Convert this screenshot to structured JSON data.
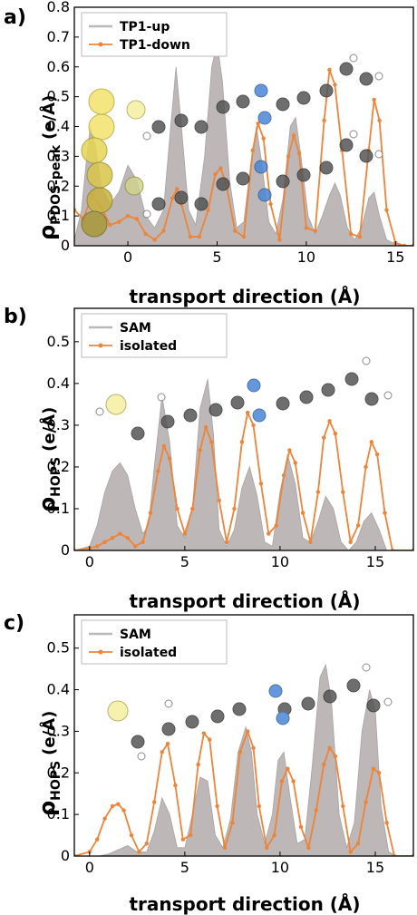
{
  "chart_data": [
    {
      "panel": "a)",
      "type": "area",
      "xlabel": "transport direction (Å)",
      "ylabel_main": "ρ",
      "ylabel_sub": "PDOS-peak",
      "ylabel_unit": "(e/Å)",
      "xlim": [
        -3,
        16
      ],
      "ylim": [
        0,
        0.8
      ],
      "xticks": [
        0,
        5,
        10,
        15
      ],
      "yticks": [
        0,
        0.1,
        0.2,
        0.3,
        0.4,
        0.5,
        0.6,
        0.7,
        0.8
      ],
      "legend_position": "top-left",
      "series": [
        {
          "name": "TP1-up",
          "style": "filled",
          "color": "#bdb7b7",
          "x": [
            -3,
            -2.6,
            -2.3,
            -2.1,
            -1.8,
            -1.5,
            -1.0,
            -0.5,
            0.0,
            0.5,
            1.0,
            1.5,
            2.0,
            2.4,
            2.7,
            3.0,
            3.4,
            3.8,
            4.3,
            4.7,
            5.0,
            5.3,
            5.7,
            6.1,
            6.5,
            6.9,
            7.2,
            7.5,
            7.9,
            8.3,
            8.7,
            9.1,
            9.4,
            9.7,
            10.1,
            10.5,
            10.9,
            11.3,
            11.6,
            11.9,
            12.3,
            12.7,
            13.1,
            13.5,
            13.8,
            14.1,
            14.5,
            15.0,
            15.5,
            16
          ],
          "y": [
            0.02,
            0.12,
            0.3,
            0.4,
            0.33,
            0.2,
            0.14,
            0.18,
            0.27,
            0.22,
            0.1,
            0.06,
            0.12,
            0.4,
            0.6,
            0.4,
            0.12,
            0.07,
            0.3,
            0.6,
            0.68,
            0.55,
            0.22,
            0.06,
            0.08,
            0.28,
            0.4,
            0.28,
            0.08,
            0.04,
            0.16,
            0.4,
            0.43,
            0.3,
            0.1,
            0.04,
            0.1,
            0.17,
            0.21,
            0.17,
            0.06,
            0.02,
            0.06,
            0.16,
            0.18,
            0.1,
            0.02,
            0.005,
            0.0,
            0.0
          ]
        },
        {
          "name": "TP1-down",
          "style": "line-markers",
          "color": "#ee8438",
          "x": [
            -3,
            -2.5,
            -2.0,
            -1.5,
            -1.0,
            -0.5,
            0.0,
            0.5,
            1.0,
            1.5,
            2.0,
            2.5,
            2.75,
            3.0,
            3.5,
            4.0,
            4.5,
            4.9,
            5.2,
            5.5,
            6.0,
            6.5,
            7.0,
            7.3,
            7.6,
            8.0,
            8.5,
            9.0,
            9.3,
            9.6,
            10.0,
            10.5,
            11.0,
            11.3,
            11.6,
            12.0,
            12.5,
            13.0,
            13.5,
            13.8,
            14.1,
            14.5,
            15.0,
            15.5,
            16
          ],
          "y": [
            0.12,
            0.09,
            0.17,
            0.13,
            0.07,
            0.08,
            0.1,
            0.09,
            0.04,
            0.02,
            0.05,
            0.16,
            0.19,
            0.14,
            0.03,
            0.03,
            0.12,
            0.24,
            0.26,
            0.21,
            0.05,
            0.03,
            0.32,
            0.41,
            0.36,
            0.14,
            0.02,
            0.3,
            0.37,
            0.31,
            0.06,
            0.05,
            0.42,
            0.59,
            0.54,
            0.32,
            0.04,
            0.03,
            0.32,
            0.49,
            0.42,
            0.12,
            0.01,
            0.0,
            0.0
          ]
        }
      ]
    },
    {
      "panel": "b)",
      "type": "area",
      "xlabel": "transport direction (Å)",
      "ylabel_main": "ρ",
      "ylabel_sub": "HOPS",
      "ylabel_unit": "(e/Å)",
      "xlim": [
        -0.8,
        17
      ],
      "ylim": [
        0,
        0.58
      ],
      "xticks": [
        0,
        5,
        10,
        15
      ],
      "yticks": [
        0,
        0.1,
        0.2,
        0.3,
        0.4,
        0.5
      ],
      "legend_position": "top-left",
      "series": [
        {
          "name": "SAM",
          "style": "filled",
          "color": "#bdb7b7",
          "x": [
            -0.8,
            0.0,
            0.4,
            0.8,
            1.2,
            1.6,
            2.0,
            2.4,
            2.8,
            3.1,
            3.4,
            3.8,
            4.2,
            4.6,
            5.0,
            5.4,
            5.8,
            6.2,
            6.5,
            6.8,
            7.2,
            7.6,
            8.0,
            8.4,
            8.8,
            9.2,
            9.6,
            10.0,
            10.4,
            10.8,
            11.2,
            11.6,
            12.0,
            12.4,
            12.8,
            13.2,
            13.6,
            14.0,
            14.4,
            14.8,
            15.2,
            15.6,
            16.0,
            17
          ],
          "y": [
            0.0,
            0.01,
            0.06,
            0.14,
            0.19,
            0.21,
            0.18,
            0.1,
            0.04,
            0.06,
            0.2,
            0.37,
            0.26,
            0.06,
            0.03,
            0.1,
            0.34,
            0.41,
            0.28,
            0.05,
            0.01,
            0.05,
            0.15,
            0.2,
            0.13,
            0.02,
            0.01,
            0.14,
            0.23,
            0.16,
            0.03,
            0.02,
            0.07,
            0.13,
            0.1,
            0.02,
            0.0,
            0.02,
            0.07,
            0.09,
            0.05,
            0.0,
            0.0,
            0.0
          ]
        },
        {
          "name": "isolated",
          "style": "line-markers",
          "color": "#ee8438",
          "x": [
            -0.8,
            0.0,
            0.4,
            0.8,
            1.2,
            1.6,
            2.0,
            2.4,
            2.8,
            3.2,
            3.6,
            3.9,
            4.2,
            4.6,
            5.0,
            5.4,
            5.8,
            6.1,
            6.4,
            6.8,
            7.2,
            7.6,
            8.0,
            8.3,
            8.6,
            9.0,
            9.4,
            9.8,
            10.2,
            10.5,
            10.8,
            11.2,
            11.6,
            12.0,
            12.3,
            12.6,
            12.9,
            13.3,
            13.7,
            14.1,
            14.5,
            14.8,
            15.1,
            15.5,
            15.9,
            17
          ],
          "y": [
            0.0,
            0.005,
            0.01,
            0.02,
            0.03,
            0.04,
            0.03,
            0.01,
            0.02,
            0.09,
            0.19,
            0.25,
            0.22,
            0.1,
            0.04,
            0.1,
            0.24,
            0.295,
            0.26,
            0.12,
            0.02,
            0.1,
            0.26,
            0.33,
            0.3,
            0.16,
            0.04,
            0.06,
            0.18,
            0.24,
            0.21,
            0.09,
            0.02,
            0.14,
            0.27,
            0.31,
            0.28,
            0.14,
            0.02,
            0.06,
            0.2,
            0.26,
            0.23,
            0.09,
            0.0,
            0.0
          ]
        }
      ]
    },
    {
      "panel": "c)",
      "type": "area",
      "xlabel": "transport direction (Å)",
      "ylabel_main": "ρ",
      "ylabel_sub": "HOPS",
      "ylabel_unit": "(e/Å)",
      "xlim": [
        -0.8,
        17
      ],
      "ylim": [
        0,
        0.58
      ],
      "xticks": [
        0,
        5,
        10,
        15
      ],
      "yticks": [
        0,
        0.1,
        0.2,
        0.3,
        0.4,
        0.5
      ],
      "legend_position": "top-left",
      "series": [
        {
          "name": "SAM",
          "style": "filled",
          "color": "#bdb7b7",
          "x": [
            -0.8,
            0.5,
            1.0,
            1.5,
            2.0,
            2.5,
            3.0,
            3.4,
            3.8,
            4.2,
            4.6,
            5.0,
            5.4,
            5.8,
            6.2,
            6.6,
            7.0,
            7.4,
            7.8,
            8.2,
            8.5,
            8.8,
            9.2,
            9.6,
            9.9,
            10.2,
            10.5,
            10.9,
            11.3,
            11.7,
            12.1,
            12.4,
            12.7,
            13.1,
            13.5,
            13.9,
            14.3,
            14.7,
            15.0,
            15.3,
            15.7,
            16.1,
            17
          ],
          "y": [
            0.0,
            0.0,
            0.005,
            0.015,
            0.025,
            0.01,
            0.01,
            0.06,
            0.14,
            0.1,
            0.02,
            0.02,
            0.1,
            0.19,
            0.18,
            0.05,
            0.02,
            0.09,
            0.25,
            0.31,
            0.25,
            0.1,
            0.03,
            0.1,
            0.23,
            0.25,
            0.15,
            0.03,
            0.04,
            0.22,
            0.43,
            0.46,
            0.37,
            0.1,
            0.02,
            0.08,
            0.3,
            0.4,
            0.35,
            0.12,
            0.01,
            0.0,
            0.0
          ]
        },
        {
          "name": "isolated",
          "style": "line-markers",
          "color": "#ee8438",
          "x": [
            -0.8,
            0.0,
            0.4,
            0.8,
            1.2,
            1.5,
            1.8,
            2.2,
            2.6,
            3.0,
            3.4,
            3.8,
            4.1,
            4.5,
            4.9,
            5.3,
            5.7,
            6.0,
            6.3,
            6.7,
            7.1,
            7.5,
            7.9,
            8.3,
            8.6,
            8.9,
            9.3,
            9.7,
            10.1,
            10.4,
            10.7,
            11.1,
            11.5,
            11.9,
            12.3,
            12.6,
            12.9,
            13.3,
            13.7,
            14.1,
            14.5,
            14.9,
            15.2,
            15.6,
            16.0,
            17
          ],
          "y": [
            0.0,
            0.01,
            0.04,
            0.09,
            0.12,
            0.125,
            0.11,
            0.05,
            0.01,
            0.03,
            0.13,
            0.25,
            0.27,
            0.17,
            0.04,
            0.05,
            0.22,
            0.295,
            0.28,
            0.12,
            0.02,
            0.08,
            0.25,
            0.3,
            0.26,
            0.12,
            0.02,
            0.05,
            0.18,
            0.21,
            0.18,
            0.07,
            0.02,
            0.11,
            0.22,
            0.26,
            0.24,
            0.12,
            0.01,
            0.03,
            0.13,
            0.21,
            0.2,
            0.08,
            0.0,
            0.0
          ]
        }
      ]
    }
  ]
}
